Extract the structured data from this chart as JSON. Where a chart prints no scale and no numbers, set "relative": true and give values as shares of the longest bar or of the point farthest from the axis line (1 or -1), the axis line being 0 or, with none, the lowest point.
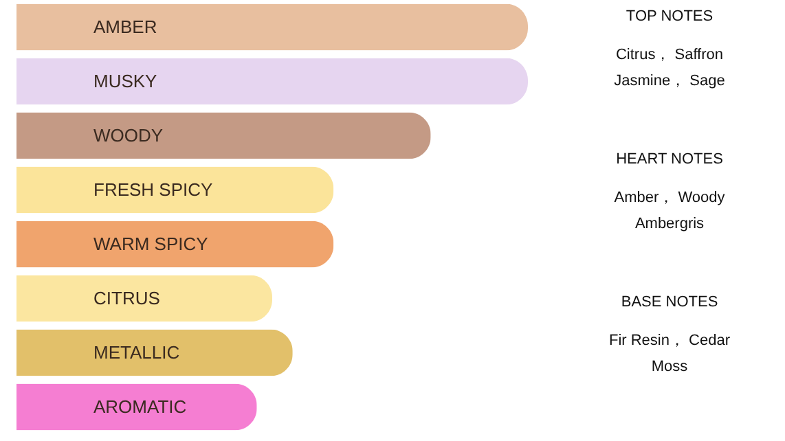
{
  "chart_data": {
    "type": "bar",
    "orientation": "horizontal",
    "relative": true,
    "categories": [
      "AMBER",
      "MUSKY",
      "WOODY",
      "FRESH SPICY",
      "WARM SPICY",
      "CITRUS",
      "METALLIC",
      "AROMATIC"
    ],
    "values": [
      1,
      1,
      0.81,
      0.62,
      0.62,
      0.5,
      0.54,
      0.47
    ],
    "colors": [
      "#e8bf9f",
      "#e6d5f0",
      "#c49a85",
      "#fbe49a",
      "#f0a46d",
      "#fbe6a0",
      "#e2c06a",
      "#f57ed2"
    ],
    "annotations": [
      "TOP NOTES",
      "Citrus， Saffron",
      "Jasmine， Sage",
      "HEART NOTES",
      "Amber， Woody",
      "Ambergris",
      "BASE NOTES",
      "Fir Resin， Cedar",
      "Moss"
    ]
  }
}
